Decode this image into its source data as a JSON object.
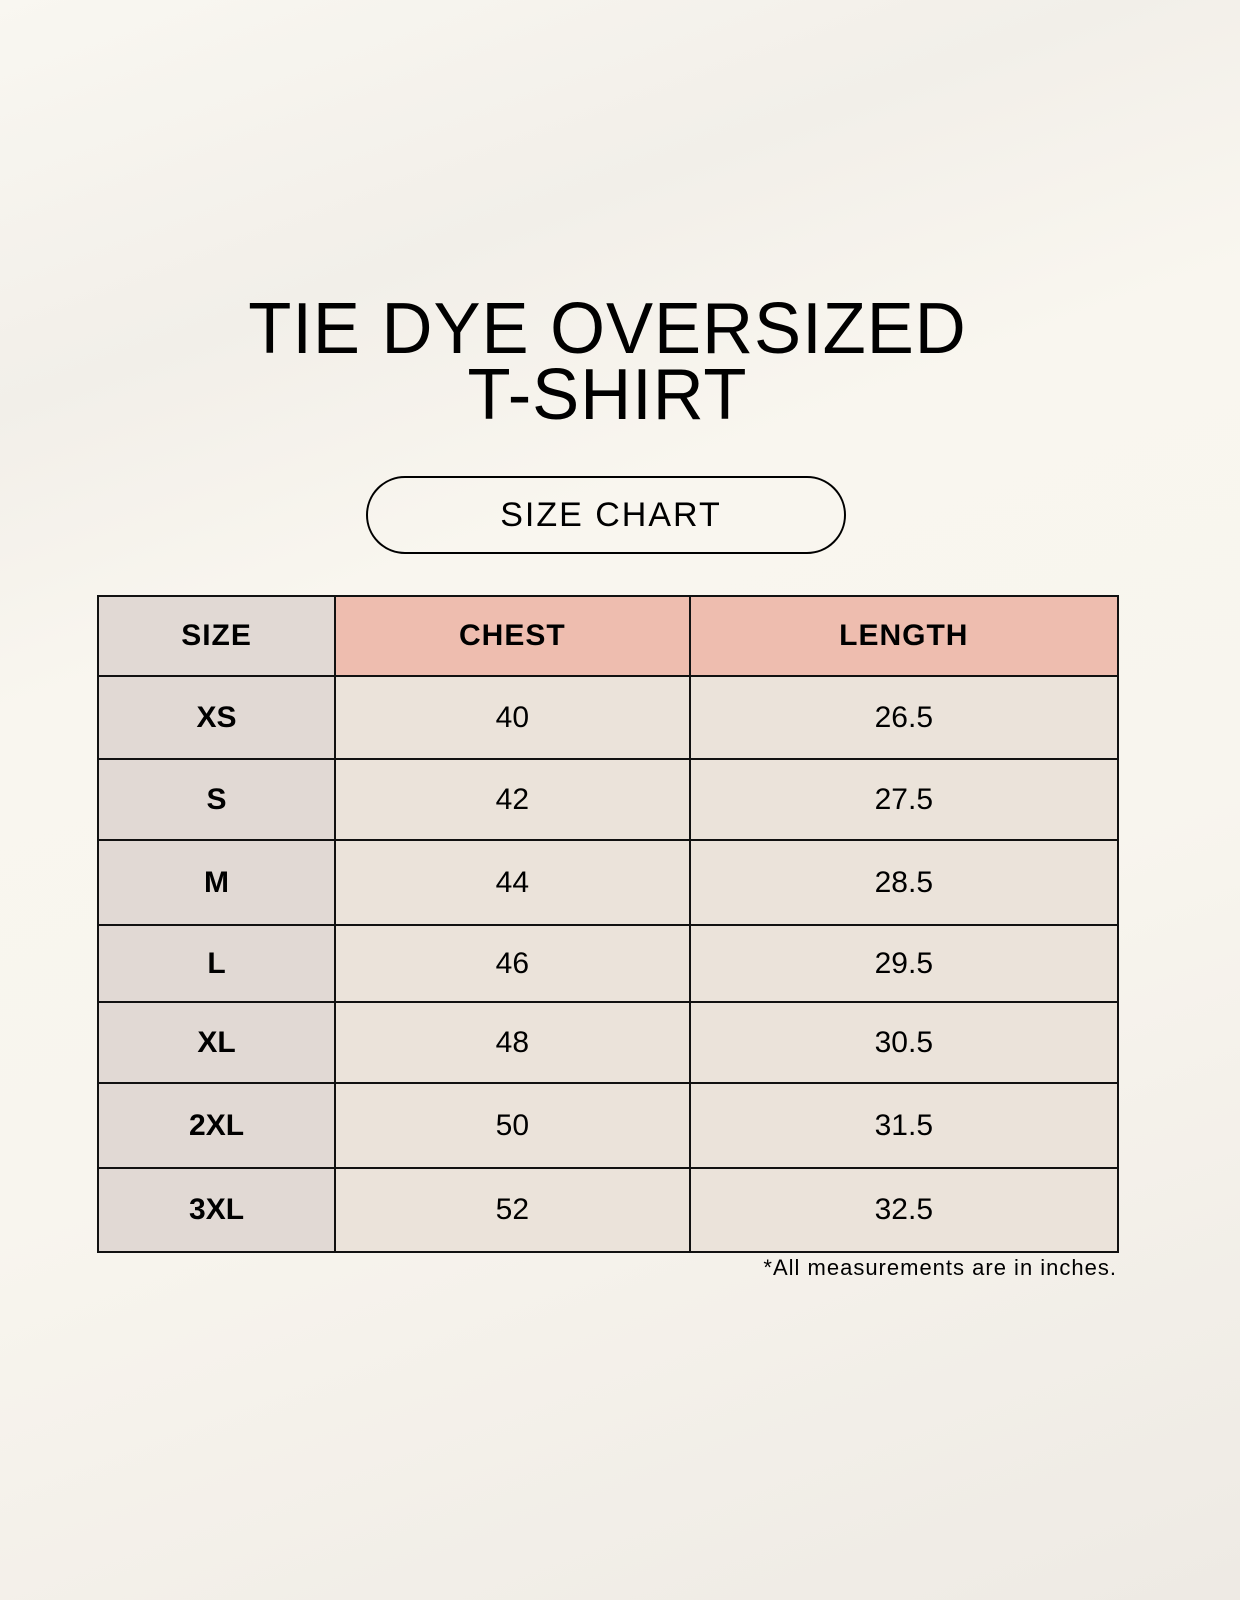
{
  "title": {
    "line1": "TIE DYE OVERSIZED",
    "line2": "T-SHIRT"
  },
  "badge": "SIZE CHART",
  "table": {
    "headers": [
      "SIZE",
      "CHEST",
      "LENGTH"
    ],
    "rows": [
      [
        "XS",
        "40",
        "26.5"
      ],
      [
        "S",
        "42",
        "27.5"
      ],
      [
        "M",
        "44",
        "28.5"
      ],
      [
        "L",
        "46",
        "29.5"
      ],
      [
        "XL",
        "48",
        "30.5"
      ],
      [
        "2XL",
        "50",
        "31.5"
      ],
      [
        "3XL",
        "52",
        "32.5"
      ]
    ]
  },
  "footnote": "*All measurements are in inches.",
  "colors": {
    "size_column": "#e1d9d4",
    "header_accent": "#eebdaf",
    "cell": "#ebe3da"
  }
}
